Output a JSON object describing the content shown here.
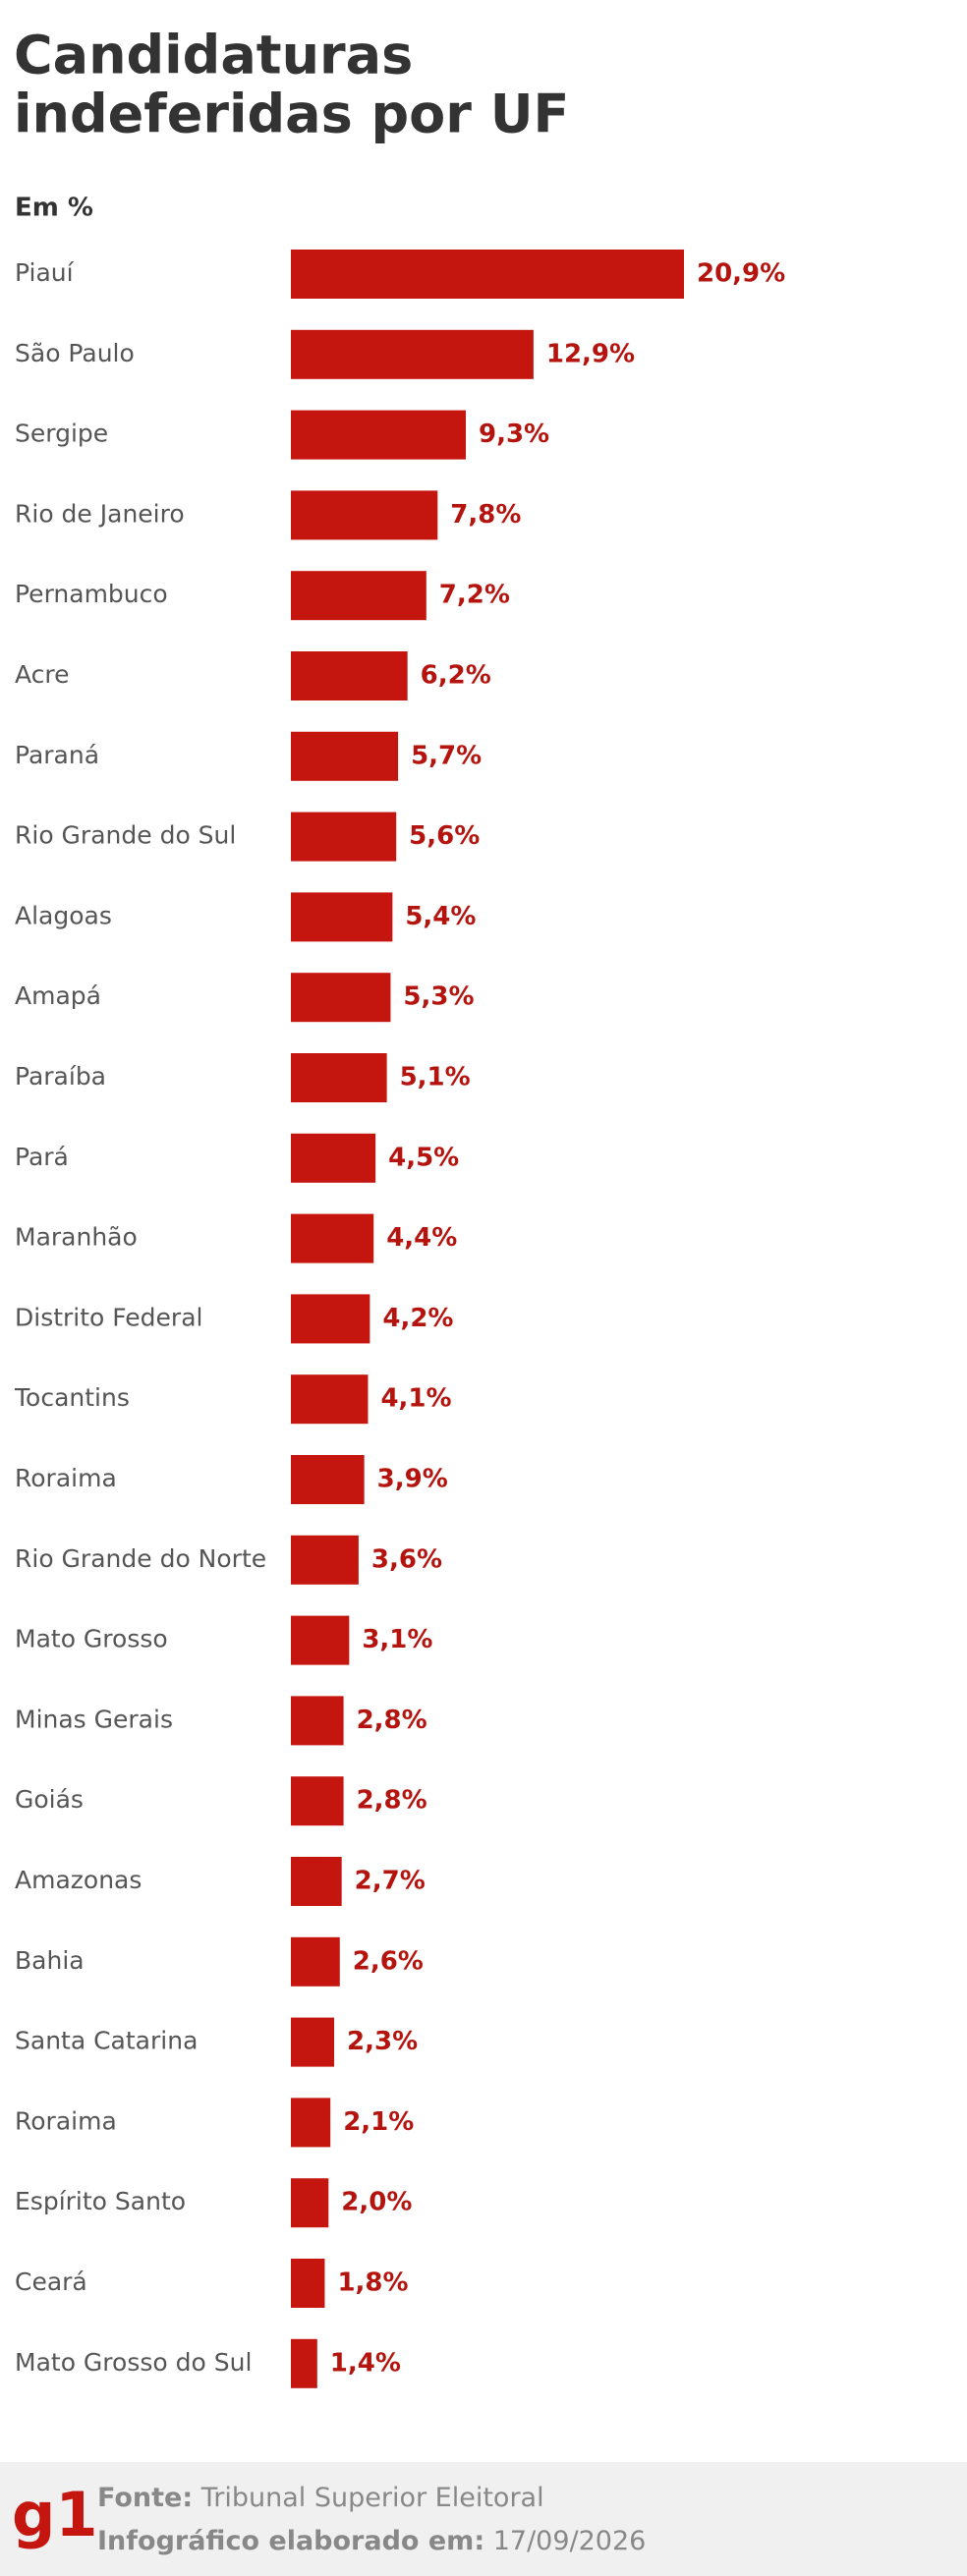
{
  "chart_data": {
    "type": "bar",
    "orientation": "horizontal",
    "title": [
      "Candidaturas",
      "indeferidas por UF"
    ],
    "subtitle": "Em %",
    "categories": [
      "Piauí",
      "São Paulo",
      "Sergipe",
      "Rio de Janeiro",
      "Pernambuco",
      "Acre",
      "Paraná",
      "Rio Grande do Sul",
      "Alagoas",
      "Amapá",
      "Paraíba",
      "Pará",
      "Maranhão",
      "Distrito Federal",
      "Tocantins",
      "Roraima",
      "Rio Grande do Norte",
      "Mato Grosso",
      "Minas Gerais",
      "Goiás",
      "Amazonas",
      "Bahia",
      "Santa Catarina",
      "Roraima",
      "Espírito Santo",
      "Ceará",
      "Mato Grosso do Sul"
    ],
    "values": [
      20.9,
      12.9,
      9.3,
      7.8,
      7.2,
      6.2,
      5.7,
      5.6,
      5.4,
      5.3,
      5.1,
      4.5,
      4.4,
      4.2,
      4.1,
      3.9,
      3.6,
      3.1,
      2.8,
      2.8,
      2.7,
      2.6,
      2.3,
      2.1,
      2.0,
      1.8,
      1.4
    ],
    "value_labels": [
      "20,9%",
      "12,9%",
      "9,3%",
      "7,8%",
      "7,2%",
      "6,2%",
      "5,7%",
      "5,6%",
      "5,4%",
      "5,3%",
      "5,1%",
      "4,5%",
      "4,4%",
      "4,2%",
      "4,1%",
      "3,9%",
      "3,6%",
      "3,1%",
      "2,8%",
      "2,8%",
      "2,7%",
      "2,6%",
      "2,3%",
      "2,1%",
      "2,0%",
      "1,8%",
      "1,4%"
    ],
    "color": "#c4150e"
  },
  "footer": {
    "logo": "g1",
    "source_label": "Fonte:",
    "source": "Tribunal Superior Eleitoral",
    "date_label": "Infográfico elaborado em:",
    "date": "17/09/2026"
  }
}
